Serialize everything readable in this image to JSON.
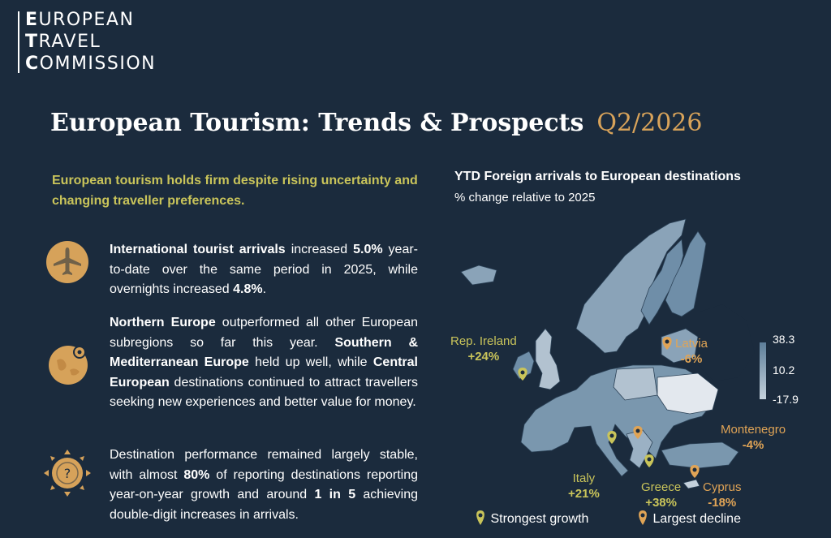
{
  "logo": {
    "line1_initial": "E",
    "line1_rest": "UROPEAN",
    "line2_initial": "T",
    "line2_rest": "RAVEL",
    "line3_initial": "C",
    "line3_rest": "OMMISSION"
  },
  "header": {
    "title": "European Tourism: Trends & Prospects",
    "quarter": "Q2/2026"
  },
  "lead": "European tourism holds firm despite rising uncertainty and changing traveller preferences.",
  "paragraphs": {
    "p1": {
      "b1": "International tourist arrivals",
      "t1": " increased ",
      "b2": "5.0%",
      "t2": " year-to-date over the same period in 2025, while overnights increased ",
      "b3": "4.8%",
      "t3": "."
    },
    "p2": {
      "b1": "Northern Europe",
      "t1": " outperformed all other European subregions so far this year. ",
      "b2": "Southern & Mediterranean Europe",
      "t2": " held up well, while ",
      "b3": "Central European",
      "t3": " destinations continued to attract travellers seeking new experiences and better value for money."
    },
    "p3": {
      "t1": "Destination performance remained largely stable, with almost ",
      "b1": "80%",
      "t2": " of reporting destinations reporting year-on-year growth and around ",
      "b2": "1 in 5",
      "t3": " achieving double-digit increases in arrivals."
    }
  },
  "icons": {
    "p1": "airplane-icon",
    "p2": "globe-pin-icon",
    "p3": "question-compass-icon"
  },
  "map": {
    "title": "YTD Foreign arrivals to European destinations",
    "subtitle": "% change relative to 2025",
    "scale": {
      "max": "38.3",
      "mid": "10.2",
      "min": "-17.9"
    },
    "labels": {
      "ireland": {
        "name": "Rep. Ireland",
        "value": "+24%"
      },
      "latvia": {
        "name": "Latvia",
        "value": "-6%"
      },
      "montenegro": {
        "name": "Montenegro",
        "value": "-4%"
      },
      "italy": {
        "name": "Italy",
        "value": "+21%"
      },
      "greece": {
        "name": "Greece",
        "value": "+38%"
      },
      "cyprus": {
        "name": "Cyprus",
        "value": "-18%"
      }
    },
    "legend": {
      "growth": "Strongest growth",
      "decline": "Largest decline"
    }
  },
  "colors": {
    "background": "#1b2b3d",
    "accent_gold": "#d8a35a",
    "accent_green": "#c9c45a",
    "map_fill": "#8aa3b8"
  }
}
